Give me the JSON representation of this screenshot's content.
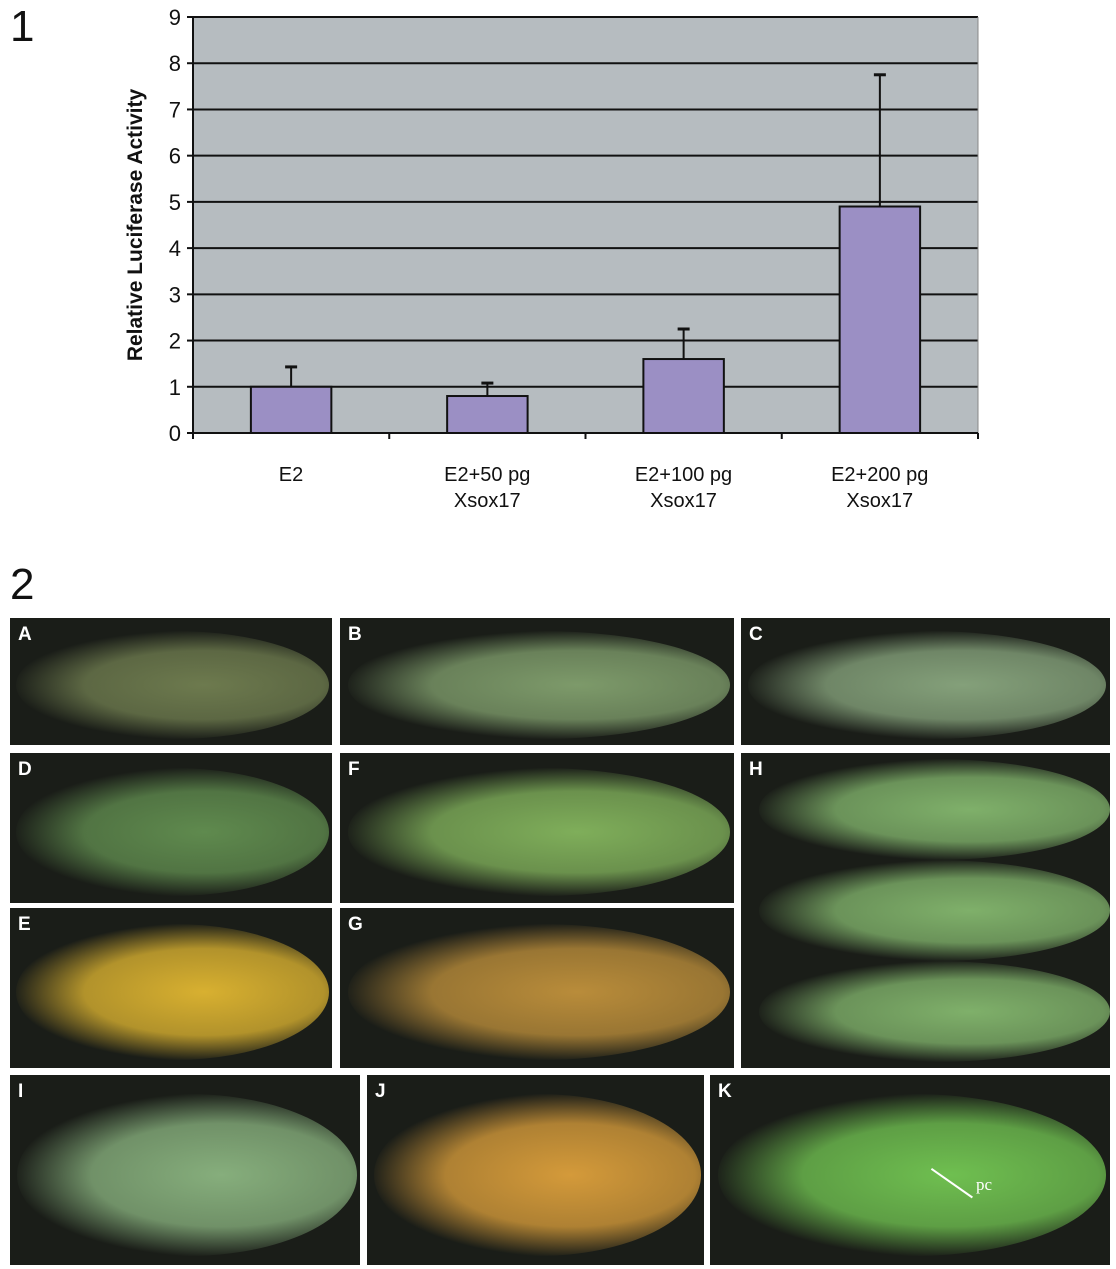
{
  "figure_labels": {
    "part1": "1",
    "part2": "2"
  },
  "chart_data": {
    "type": "bar",
    "title": "",
    "xlabel": "",
    "ylabel": "Relative Luciferase Activity",
    "categories": [
      "E2",
      "E2+50 pg Xsox17",
      "E2+100 pg Xsox17",
      "E2+200 pg Xsox17"
    ],
    "category_lines": [
      [
        "E2"
      ],
      [
        "E2+50 pg",
        "Xsox17"
      ],
      [
        "E2+100 pg",
        "Xsox17"
      ],
      [
        "E2+200 pg",
        "Xsox17"
      ]
    ],
    "values": [
      1.0,
      0.8,
      1.6,
      4.9
    ],
    "error_upper": [
      1.43,
      1.08,
      2.25,
      7.75
    ],
    "ylim": [
      0,
      9
    ],
    "yticks": [
      "0",
      "1",
      "2",
      "3",
      "4",
      "5",
      "6",
      "7",
      "8",
      "9"
    ],
    "grid": true,
    "bar_color": "#9b8fc4",
    "background_color": "#b6bcc0"
  },
  "panels": [
    {
      "label": "A",
      "tone": "#6d7a4e"
    },
    {
      "label": "B",
      "tone": "#7d9a6a"
    },
    {
      "label": "C",
      "tone": "#84a07a"
    },
    {
      "label": "D",
      "tone": "#5f8a4e"
    },
    {
      "label": "F",
      "tone": "#7fae5a"
    },
    {
      "label": "H",
      "tone": "#7fb06a"
    },
    {
      "label": "E",
      "tone": "#d8b030"
    },
    {
      "label": "G",
      "tone": "#b98c3a"
    },
    {
      "label": "I",
      "tone": "#86ae7c"
    },
    {
      "label": "J",
      "tone": "#d49a3a"
    },
    {
      "label": "K",
      "tone": "#6fbf50"
    }
  ],
  "annotations": {
    "pc": "pc"
  }
}
